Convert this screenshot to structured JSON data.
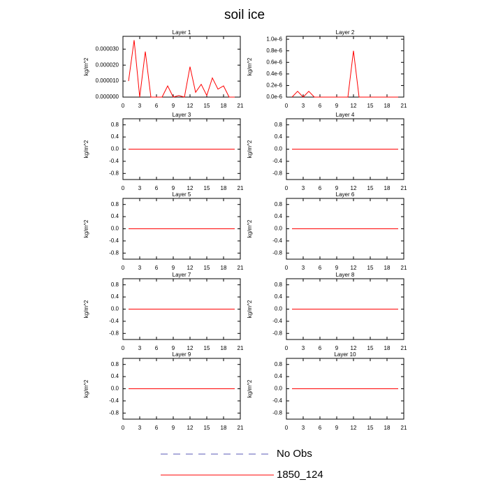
{
  "title": "soil ice",
  "legend": [
    {
      "name": "No Obs",
      "color": "#5a5ab4",
      "dash": true
    },
    {
      "name": "1850_124",
      "color": "#ff0000",
      "dash": false
    }
  ],
  "chart_data": [
    {
      "type": "line",
      "title": "Layer 1",
      "ylabel": "kg/m^2",
      "x": [
        1,
        2,
        3,
        4,
        5,
        6,
        7,
        8,
        9,
        10,
        11,
        12,
        13,
        14,
        15,
        16,
        17,
        18,
        19,
        20
      ],
      "xlim": [
        0,
        21
      ],
      "xticks": [
        0,
        3,
        6,
        9,
        12,
        15,
        18,
        21
      ],
      "ylim": [
        0,
        3.8e-05
      ],
      "yticks": [
        {
          "value": 0,
          "label": "0.000000"
        },
        {
          "value": 1e-05,
          "label": "0.000010"
        },
        {
          "value": 2e-05,
          "label": "0.000020"
        },
        {
          "value": 3e-05,
          "label": "0.000030"
        }
      ],
      "series": [
        {
          "name": "1850_124",
          "color": "#ff0000",
          "values": [
            1e-05,
            3.56e-05,
            0,
            2.85e-05,
            0,
            0,
            0,
            7e-06,
            0,
            1e-06,
            0,
            1.9e-05,
            3e-06,
            8e-06,
            1e-06,
            1.2e-05,
            5e-06,
            7e-06,
            0,
            0
          ]
        }
      ]
    },
    {
      "type": "line",
      "title": "Layer 2",
      "ylabel": "kg/m^2",
      "x": [
        1,
        2,
        3,
        4,
        5,
        6,
        7,
        8,
        9,
        10,
        11,
        12,
        13,
        14,
        15,
        16,
        17,
        18,
        19,
        20
      ],
      "xlim": [
        0,
        21
      ],
      "xticks": [
        0,
        3,
        6,
        9,
        12,
        15,
        18,
        21
      ],
      "ylim": [
        0,
        1.05e-06
      ],
      "yticks": [
        {
          "value": 0,
          "label": "0.0e-6"
        },
        {
          "value": 2e-07,
          "label": "0.2e-6"
        },
        {
          "value": 4e-07,
          "label": "0.4e-6"
        },
        {
          "value": 6e-07,
          "label": "0.6e-6"
        },
        {
          "value": 8e-07,
          "label": "0.8e-6"
        },
        {
          "value": 1e-06,
          "label": "1.0e-6"
        }
      ],
      "series": [
        {
          "name": "1850_124",
          "color": "#ff0000",
          "values": [
            0,
            1e-07,
            0,
            1e-07,
            0,
            0,
            0,
            0,
            0,
            0,
            0,
            8e-07,
            0,
            0,
            0,
            0,
            0,
            0,
            0,
            0
          ]
        }
      ]
    },
    {
      "type": "line",
      "title": "Layer 3",
      "ylabel": "kg/m^2",
      "x": [
        1,
        2,
        3,
        4,
        5,
        6,
        7,
        8,
        9,
        10,
        11,
        12,
        13,
        14,
        15,
        16,
        17,
        18,
        19,
        20
      ],
      "xlim": [
        0,
        21
      ],
      "xticks": [
        0,
        3,
        6,
        9,
        12,
        15,
        18,
        21
      ],
      "ylim": [
        -1,
        1
      ],
      "yticks": [
        -0.8,
        -0.4,
        {
          "value": 0,
          "label": "0.0"
        },
        0.4,
        0.8
      ],
      "series": [
        {
          "name": "1850_124",
          "color": "#ff0000",
          "values": [
            0,
            0,
            0,
            0,
            0,
            0,
            0,
            0,
            0,
            0,
            0,
            0,
            0,
            0,
            0,
            0,
            0,
            0,
            0,
            0
          ]
        }
      ]
    },
    {
      "type": "line",
      "title": "Layer 4",
      "ylabel": "kg/m^2",
      "x": [
        1,
        2,
        3,
        4,
        5,
        6,
        7,
        8,
        9,
        10,
        11,
        12,
        13,
        14,
        15,
        16,
        17,
        18,
        19,
        20
      ],
      "xlim": [
        0,
        21
      ],
      "xticks": [
        0,
        3,
        6,
        9,
        12,
        15,
        18,
        21
      ],
      "ylim": [
        -1,
        1
      ],
      "yticks": [
        -0.8,
        -0.4,
        {
          "value": 0,
          "label": "0.0"
        },
        0.4,
        0.8
      ],
      "series": [
        {
          "name": "1850_124",
          "color": "#ff0000",
          "values": [
            0,
            0,
            0,
            0,
            0,
            0,
            0,
            0,
            0,
            0,
            0,
            0,
            0,
            0,
            0,
            0,
            0,
            0,
            0,
            0
          ]
        }
      ]
    },
    {
      "type": "line",
      "title": "Layer 5",
      "ylabel": "kg/m^2",
      "x": [
        1,
        2,
        3,
        4,
        5,
        6,
        7,
        8,
        9,
        10,
        11,
        12,
        13,
        14,
        15,
        16,
        17,
        18,
        19,
        20
      ],
      "xlim": [
        0,
        21
      ],
      "xticks": [
        0,
        3,
        6,
        9,
        12,
        15,
        18,
        21
      ],
      "ylim": [
        -1,
        1
      ],
      "yticks": [
        -0.8,
        -0.4,
        {
          "value": 0,
          "label": "0.0"
        },
        0.4,
        0.8
      ],
      "series": [
        {
          "name": "1850_124",
          "color": "#ff0000",
          "values": [
            0,
            0,
            0,
            0,
            0,
            0,
            0,
            0,
            0,
            0,
            0,
            0,
            0,
            0,
            0,
            0,
            0,
            0,
            0,
            0
          ]
        }
      ]
    },
    {
      "type": "line",
      "title": "Layer 6",
      "ylabel": "kg/m^2",
      "x": [
        1,
        2,
        3,
        4,
        5,
        6,
        7,
        8,
        9,
        10,
        11,
        12,
        13,
        14,
        15,
        16,
        17,
        18,
        19,
        20
      ],
      "xlim": [
        0,
        21
      ],
      "xticks": [
        0,
        3,
        6,
        9,
        12,
        15,
        18,
        21
      ],
      "ylim": [
        -1,
        1
      ],
      "yticks": [
        -0.8,
        -0.4,
        {
          "value": 0,
          "label": "0.0"
        },
        0.4,
        0.8
      ],
      "series": [
        {
          "name": "1850_124",
          "color": "#ff0000",
          "values": [
            0,
            0,
            0,
            0,
            0,
            0,
            0,
            0,
            0,
            0,
            0,
            0,
            0,
            0,
            0,
            0,
            0,
            0,
            0,
            0
          ]
        }
      ]
    },
    {
      "type": "line",
      "title": "Layer 7",
      "ylabel": "kg/m^2",
      "x": [
        1,
        2,
        3,
        4,
        5,
        6,
        7,
        8,
        9,
        10,
        11,
        12,
        13,
        14,
        15,
        16,
        17,
        18,
        19,
        20
      ],
      "xlim": [
        0,
        21
      ],
      "xticks": [
        0,
        3,
        6,
        9,
        12,
        15,
        18,
        21
      ],
      "ylim": [
        -1,
        1
      ],
      "yticks": [
        -0.8,
        -0.4,
        {
          "value": 0,
          "label": "0.0"
        },
        0.4,
        0.8
      ],
      "series": [
        {
          "name": "1850_124",
          "color": "#ff0000",
          "values": [
            0,
            0,
            0,
            0,
            0,
            0,
            0,
            0,
            0,
            0,
            0,
            0,
            0,
            0,
            0,
            0,
            0,
            0,
            0,
            0
          ]
        }
      ]
    },
    {
      "type": "line",
      "title": "Layer 8",
      "ylabel": "kg/m^2",
      "x": [
        1,
        2,
        3,
        4,
        5,
        6,
        7,
        8,
        9,
        10,
        11,
        12,
        13,
        14,
        15,
        16,
        17,
        18,
        19,
        20
      ],
      "xlim": [
        0,
        21
      ],
      "xticks": [
        0,
        3,
        6,
        9,
        12,
        15,
        18,
        21
      ],
      "ylim": [
        -1,
        1
      ],
      "yticks": [
        -0.8,
        -0.4,
        {
          "value": 0,
          "label": "0.0"
        },
        0.4,
        0.8
      ],
      "series": [
        {
          "name": "1850_124",
          "color": "#ff0000",
          "values": [
            0,
            0,
            0,
            0,
            0,
            0,
            0,
            0,
            0,
            0,
            0,
            0,
            0,
            0,
            0,
            0,
            0,
            0,
            0,
            0
          ]
        }
      ]
    },
    {
      "type": "line",
      "title": "Layer 9",
      "ylabel": "kg/m^2",
      "x": [
        1,
        2,
        3,
        4,
        5,
        6,
        7,
        8,
        9,
        10,
        11,
        12,
        13,
        14,
        15,
        16,
        17,
        18,
        19,
        20
      ],
      "xlim": [
        0,
        21
      ],
      "xticks": [
        0,
        3,
        6,
        9,
        12,
        15,
        18,
        21
      ],
      "ylim": [
        -1,
        1
      ],
      "yticks": [
        -0.8,
        -0.4,
        {
          "value": 0,
          "label": "0.0"
        },
        0.4,
        0.8
      ],
      "series": [
        {
          "name": "1850_124",
          "color": "#ff0000",
          "values": [
            0,
            0,
            0,
            0,
            0,
            0,
            0,
            0,
            0,
            0,
            0,
            0,
            0,
            0,
            0,
            0,
            0,
            0,
            0,
            0
          ]
        }
      ]
    },
    {
      "type": "line",
      "title": "Layer 10",
      "ylabel": "kg/m^2",
      "x": [
        1,
        2,
        3,
        4,
        5,
        6,
        7,
        8,
        9,
        10,
        11,
        12,
        13,
        14,
        15,
        16,
        17,
        18,
        19,
        20
      ],
      "xlim": [
        0,
        21
      ],
      "xticks": [
        0,
        3,
        6,
        9,
        12,
        15,
        18,
        21
      ],
      "ylim": [
        -1,
        1
      ],
      "yticks": [
        -0.8,
        -0.4,
        {
          "value": 0,
          "label": "0.0"
        },
        0.4,
        0.8
      ],
      "series": [
        {
          "name": "1850_124",
          "color": "#ff0000",
          "values": [
            0,
            0,
            0,
            0,
            0,
            0,
            0,
            0,
            0,
            0,
            0,
            0,
            0,
            0,
            0,
            0,
            0,
            0,
            0,
            0
          ]
        }
      ]
    }
  ]
}
